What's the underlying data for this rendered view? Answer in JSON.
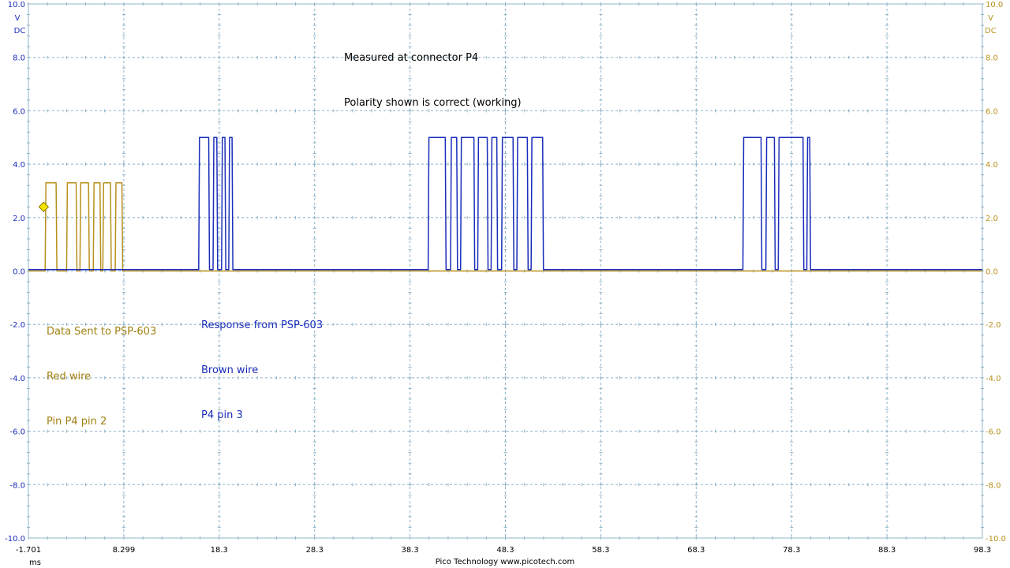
{
  "header": {
    "line1": "Measured at connector P4",
    "line2": "Polarity shown is correct (working)"
  },
  "annotations": {
    "sent": [
      "Data Sent to PSP-603",
      "Red wire",
      "Pin P4 pin 2"
    ],
    "response": [
      "Response from PSP-603",
      "Brown wire",
      "P4 pin 3"
    ]
  },
  "footer": {
    "x_unit": "ms",
    "credit": "Pico Technology  www.picotech.com"
  },
  "colors": {
    "channel_a": "#B8901A",
    "channel_b": "#1A2DBA",
    "grid": "#8FB4C9",
    "marker": "#F5E400"
  },
  "chart_data": {
    "type": "line",
    "title": "",
    "xlabel": "ms",
    "ylabel": "V DC",
    "xlim": [
      -1.701,
      98.3
    ],
    "ylim": [
      -10.0,
      10.0
    ],
    "x_ticks": [
      "-1.701",
      "8.299",
      "18.3",
      "28.3",
      "38.3",
      "48.3",
      "58.3",
      "68.3",
      "78.3",
      "88.3",
      "98.3"
    ],
    "y_ticks_left": [
      "10.0",
      "8.0",
      "6.0",
      "4.0",
      "2.0",
      "0.0",
      "-2.0",
      "-4.0",
      "-6.0",
      "-8.0",
      "-10.0"
    ],
    "y_ticks_right": [
      "10.0",
      "8.0",
      "6.0",
      "4.0",
      "2.0",
      "0.0",
      "-2.0",
      "-4.0",
      "-6.0",
      "-8.0",
      "-10.0"
    ],
    "left_axis_unit": [
      "V",
      "DC"
    ],
    "right_axis_unit": [
      "V",
      "DC"
    ],
    "grid": true,
    "series": [
      {
        "channel": "A",
        "color": "#B8901A",
        "low": 0.0,
        "high": 3.3,
        "high_intervals_ms": [
          [
            0.05,
            1.2
          ],
          [
            2.3,
            3.3
          ],
          [
            3.7,
            4.6
          ],
          [
            5.1,
            5.8
          ],
          [
            6.1,
            6.9
          ],
          [
            7.4,
            8.1
          ]
        ],
        "baseline_end_ms": 98.3
      },
      {
        "channel": "B",
        "color": "#1A2DBA",
        "low": 0.05,
        "high": 5.0,
        "high_intervals_ms": [
          [
            16.15,
            17.2
          ],
          [
            17.65,
            18.05
          ],
          [
            18.55,
            18.9
          ],
          [
            19.3,
            19.65
          ],
          [
            40.2,
            42.0
          ],
          [
            42.55,
            43.2
          ],
          [
            43.6,
            45.0
          ],
          [
            45.4,
            46.4
          ],
          [
            46.8,
            47.4
          ],
          [
            47.9,
            49.1
          ],
          [
            49.5,
            50.6
          ],
          [
            51.0,
            52.2
          ],
          [
            73.2,
            75.1
          ],
          [
            75.6,
            76.5
          ],
          [
            76.9,
            79.5
          ],
          [
            79.9,
            80.2
          ]
        ],
        "baseline_end_ms": 98.3
      }
    ],
    "trigger_marker": {
      "x_ms": -0.1,
      "y_v": 2.4
    }
  }
}
